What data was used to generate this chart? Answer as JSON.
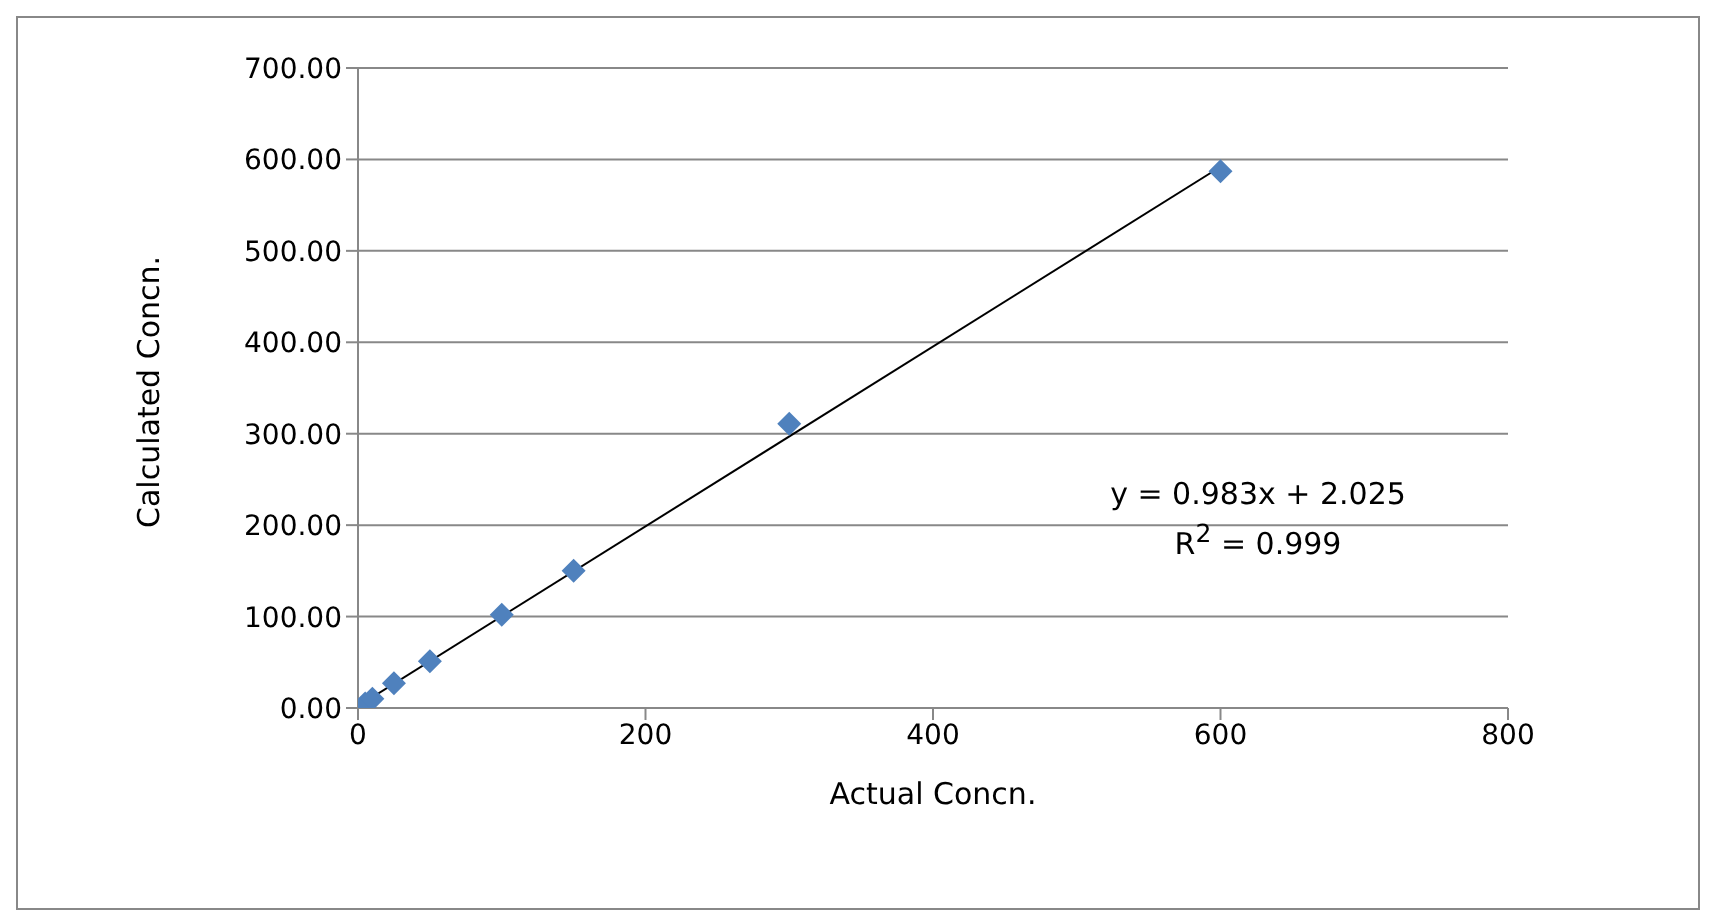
{
  "chart_data": {
    "type": "scatter",
    "xlabel": "Actual Concn.",
    "ylabel": "Calculated  Concn.",
    "xlim": [
      0,
      800
    ],
    "xticks": [
      0,
      200,
      400,
      600,
      800
    ],
    "ylim": [
      0,
      700
    ],
    "yticks": [
      {
        "value": 0,
        "label": "0.00"
      },
      {
        "value": 100,
        "label": "100.00"
      },
      {
        "value": 200,
        "label": "200.00"
      },
      {
        "value": 300,
        "label": "300.00"
      },
      {
        "value": 400,
        "label": "400.00"
      },
      {
        "value": 500,
        "label": "500.00"
      },
      {
        "value": 600,
        "label": "600.00"
      },
      {
        "value": 700,
        "label": "700.00"
      }
    ],
    "grid": "y",
    "marker": "diamond",
    "series": [
      {
        "color": "#4f81bd",
        "x": [
          5,
          10,
          25,
          50,
          100,
          150,
          300,
          600
        ],
        "values": [
          5,
          10,
          27,
          51,
          102,
          150,
          311,
          587
        ]
      },
      {
        "type": "line",
        "color": "#000000",
        "marker": "none",
        "line_style": "solid",
        "x": [
          0,
          600
        ],
        "values": [
          2,
          592
        ]
      }
    ],
    "annotations": [
      "y = 0.983x + 2.025",
      "R$^{2}$ = 0.999"
    ]
  }
}
